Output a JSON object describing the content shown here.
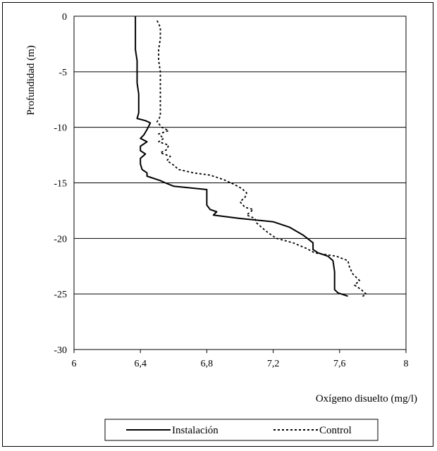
{
  "chart_data": {
    "type": "line",
    "title": "",
    "xlabel": "Oxígeno disuelto (mg/l)",
    "ylabel": "Profundidad (m)",
    "xlim": [
      6,
      8
    ],
    "ylim": [
      -30,
      0
    ],
    "x_ticks": [
      "6",
      "6,4",
      "6,8",
      "7,2",
      "7,6",
      "8"
    ],
    "y_ticks": [
      "0",
      "-5",
      "-10",
      "-15",
      "-20",
      "-25",
      "-30"
    ],
    "grid": "horizontal",
    "legend_position": "bottom",
    "series": [
      {
        "name": "Instalación",
        "style": "solid",
        "points": [
          [
            6.37,
            0
          ],
          [
            6.37,
            -1
          ],
          [
            6.37,
            -2
          ],
          [
            6.37,
            -3
          ],
          [
            6.38,
            -4
          ],
          [
            6.38,
            -5
          ],
          [
            6.38,
            -6
          ],
          [
            6.39,
            -7
          ],
          [
            6.39,
            -8
          ],
          [
            6.39,
            -8.7
          ],
          [
            6.38,
            -9.2
          ],
          [
            6.43,
            -9.4
          ],
          [
            6.46,
            -9.6
          ],
          [
            6.44,
            -10.2
          ],
          [
            6.42,
            -10.7
          ],
          [
            6.4,
            -11.0
          ],
          [
            6.44,
            -11.3
          ],
          [
            6.4,
            -11.7
          ],
          [
            6.4,
            -12.1
          ],
          [
            6.43,
            -12.4
          ],
          [
            6.4,
            -12.8
          ],
          [
            6.4,
            -13.3
          ],
          [
            6.41,
            -13.8
          ],
          [
            6.44,
            -14.1
          ],
          [
            6.44,
            -14.4
          ],
          [
            6.52,
            -14.8
          ],
          [
            6.55,
            -15.0
          ],
          [
            6.6,
            -15.3
          ],
          [
            6.8,
            -15.6
          ],
          [
            6.8,
            -16.5
          ],
          [
            6.8,
            -17.0
          ],
          [
            6.82,
            -17.4
          ],
          [
            6.86,
            -17.6
          ],
          [
            6.84,
            -17.9
          ],
          [
            7.0,
            -18.2
          ],
          [
            7.2,
            -18.5
          ],
          [
            7.3,
            -19.0
          ],
          [
            7.38,
            -19.7
          ],
          [
            7.44,
            -20.4
          ],
          [
            7.44,
            -21.0
          ],
          [
            7.47,
            -21.3
          ],
          [
            7.53,
            -21.6
          ],
          [
            7.56,
            -22.0
          ],
          [
            7.57,
            -23.0
          ],
          [
            7.57,
            -24.0
          ],
          [
            7.57,
            -24.6
          ],
          [
            7.59,
            -24.9
          ],
          [
            7.65,
            -25.2
          ]
        ]
      },
      {
        "name": "Control",
        "style": "dotted",
        "points": [
          [
            6.5,
            -0.4
          ],
          [
            6.52,
            -1.0
          ],
          [
            6.52,
            -2.0
          ],
          [
            6.51,
            -3.0
          ],
          [
            6.51,
            -4.0
          ],
          [
            6.52,
            -5.0
          ],
          [
            6.52,
            -6.0
          ],
          [
            6.52,
            -7.0
          ],
          [
            6.52,
            -8.0
          ],
          [
            6.52,
            -9.0
          ],
          [
            6.5,
            -9.5
          ],
          [
            6.53,
            -10.0
          ],
          [
            6.57,
            -10.3
          ],
          [
            6.51,
            -10.6
          ],
          [
            6.54,
            -11.0
          ],
          [
            6.51,
            -11.3
          ],
          [
            6.57,
            -11.6
          ],
          [
            6.56,
            -12.0
          ],
          [
            6.52,
            -12.3
          ],
          [
            6.58,
            -12.6
          ],
          [
            6.56,
            -13.0
          ],
          [
            6.6,
            -13.4
          ],
          [
            6.63,
            -13.8
          ],
          [
            6.72,
            -14.1
          ],
          [
            6.82,
            -14.3
          ],
          [
            6.9,
            -14.7
          ],
          [
            6.96,
            -15.1
          ],
          [
            7.01,
            -15.5
          ],
          [
            7.04,
            -15.9
          ],
          [
            7.03,
            -16.3
          ],
          [
            7.0,
            -16.7
          ],
          [
            7.03,
            -17.2
          ],
          [
            7.08,
            -17.4
          ],
          [
            7.04,
            -17.9
          ],
          [
            7.09,
            -18.2
          ],
          [
            7.1,
            -18.6
          ],
          [
            7.13,
            -19.0
          ],
          [
            7.17,
            -19.5
          ],
          [
            7.22,
            -20.0
          ],
          [
            7.32,
            -20.4
          ],
          [
            7.4,
            -20.9
          ],
          [
            7.45,
            -21.3
          ],
          [
            7.58,
            -21.6
          ],
          [
            7.65,
            -22.0
          ],
          [
            7.66,
            -22.6
          ],
          [
            7.68,
            -23.2
          ],
          [
            7.72,
            -23.8
          ],
          [
            7.69,
            -24.2
          ],
          [
            7.73,
            -24.6
          ],
          [
            7.76,
            -25.0
          ],
          [
            7.73,
            -25.3
          ]
        ]
      }
    ]
  }
}
